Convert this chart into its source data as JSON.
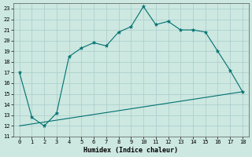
{
  "xlabel": "Humidex (Indice chaleur)",
  "ylabel": "",
  "bg_color": "#cce8e0",
  "grid_color": "#aacccc",
  "line_color": "#007070",
  "xlim": [
    -0.5,
    18.5
  ],
  "ylim": [
    11,
    23.5
  ],
  "yticks": [
    11,
    12,
    13,
    14,
    15,
    16,
    17,
    18,
    19,
    20,
    21,
    22,
    23
  ],
  "xticks": [
    0,
    1,
    2,
    3,
    4,
    5,
    6,
    7,
    8,
    9,
    10,
    11,
    12,
    13,
    14,
    15,
    16,
    17,
    18
  ],
  "curve1_x": [
    0,
    1,
    2,
    3,
    4,
    5,
    6,
    7,
    8,
    9,
    10,
    11,
    12,
    13,
    14,
    15,
    16,
    17,
    18
  ],
  "curve1_y": [
    17.0,
    12.8,
    12.0,
    13.2,
    18.5,
    19.3,
    19.8,
    19.5,
    20.8,
    21.3,
    23.2,
    21.5,
    21.8,
    21.0,
    21.0,
    20.8,
    19.0,
    17.2,
    15.2
  ],
  "curve2_x": [
    0,
    18
  ],
  "curve2_y": [
    12.0,
    15.2
  ],
  "marker_indices": [
    0,
    1,
    2,
    3,
    4,
    5,
    6,
    7,
    8,
    9,
    10,
    11,
    12,
    13,
    14,
    15,
    16,
    17,
    18
  ]
}
